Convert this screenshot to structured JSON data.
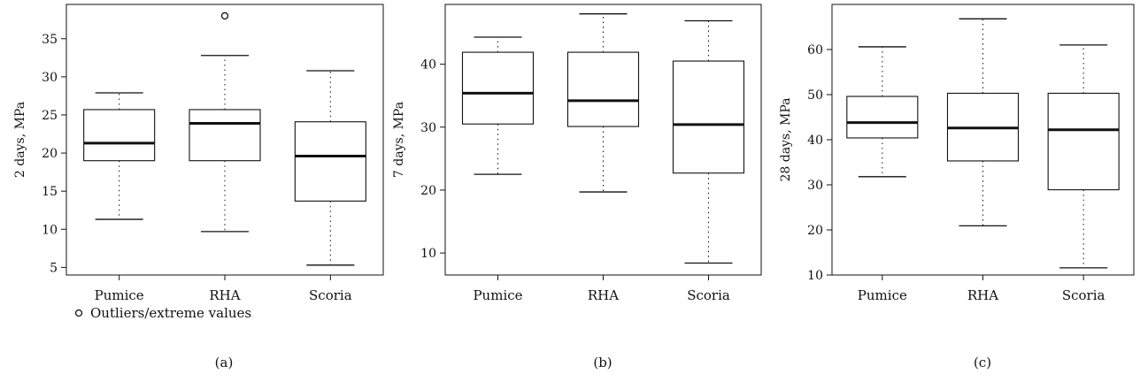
{
  "legend": {
    "label": "Outliers/extreme values",
    "marker": "open-circle"
  },
  "chart_data": [
    {
      "type": "box",
      "panel_label": "(a)",
      "ylabel": "2 days, MPa",
      "categories": [
        "Pumice",
        "RHA",
        "Scoria"
      ],
      "ylim": [
        4,
        39.5
      ],
      "yticks": [
        5,
        10,
        15,
        20,
        25,
        30,
        35
      ],
      "boxes": [
        {
          "category": "Pumice",
          "min": 11.3,
          "q1": 19.0,
          "median": 21.3,
          "q3": 25.7,
          "max": 27.9,
          "outliers": []
        },
        {
          "category": "RHA",
          "min": 9.7,
          "q1": 19.0,
          "median": 23.9,
          "q3": 25.7,
          "max": 32.8,
          "outliers": [
            38.0
          ]
        },
        {
          "category": "Scoria",
          "min": 5.3,
          "q1": 13.7,
          "median": 19.6,
          "q3": 24.1,
          "max": 30.8,
          "outliers": []
        }
      ]
    },
    {
      "type": "box",
      "panel_label": "(b)",
      "ylabel": "7 days, MPa",
      "categories": [
        "Pumice",
        "RHA",
        "Scoria"
      ],
      "ylim": [
        6.5,
        49.5
      ],
      "yticks": [
        10,
        20,
        30,
        40
      ],
      "boxes": [
        {
          "category": "Pumice",
          "min": 22.5,
          "q1": 30.5,
          "median": 35.4,
          "q3": 41.9,
          "max": 44.3,
          "outliers": []
        },
        {
          "category": "RHA",
          "min": 19.7,
          "q1": 30.1,
          "median": 34.2,
          "q3": 41.9,
          "max": 48.0,
          "outliers": []
        },
        {
          "category": "Scoria",
          "min": 8.4,
          "q1": 22.7,
          "median": 30.4,
          "q3": 40.5,
          "max": 46.9,
          "outliers": []
        }
      ]
    },
    {
      "type": "box",
      "panel_label": "(c)",
      "ylabel": "28 days, MPa",
      "categories": [
        "Pumice",
        "RHA",
        "Scoria"
      ],
      "ylim": [
        10,
        70
      ],
      "yticks": [
        10,
        20,
        30,
        40,
        50,
        60
      ],
      "boxes": [
        {
          "category": "Pumice",
          "min": 31.8,
          "q1": 40.4,
          "median": 43.8,
          "q3": 49.6,
          "max": 60.6,
          "outliers": []
        },
        {
          "category": "RHA",
          "min": 20.9,
          "q1": 35.3,
          "median": 42.6,
          "q3": 50.3,
          "max": 66.8,
          "outliers": []
        },
        {
          "category": "Scoria",
          "min": 11.6,
          "q1": 28.9,
          "median": 42.2,
          "q3": 50.3,
          "max": 61.0,
          "outliers": []
        }
      ]
    }
  ]
}
